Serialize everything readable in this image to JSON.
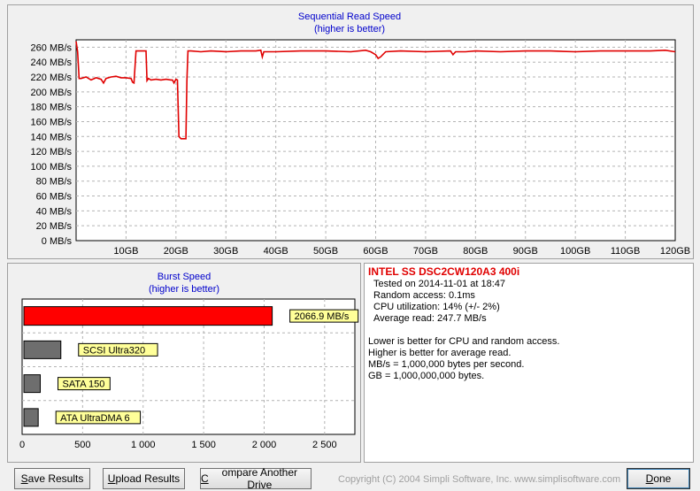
{
  "sequential": {
    "title": "Sequential Read Speed",
    "subtitle": "(higher is better)"
  },
  "burst": {
    "title": "Burst Speed",
    "subtitle": "(higher is better)"
  },
  "info": {
    "drive_name": "INTEL SS DSC2CW120A3 400i",
    "tested_on": "Tested on 2014-11-01 at 18:47",
    "random_access": "Random access: 0.1ms",
    "cpu_utilization": "CPU utilization: 14% (+/- 2%)",
    "average_read": "Average read: 247.7 MB/s",
    "note1": "Lower is better for CPU and random access.",
    "note2": "Higher is better for average read.",
    "note3": "MB/s = 1,000,000 bytes per second.",
    "note4": "GB = 1,000,000,000 bytes."
  },
  "buttons": {
    "save_prefix": "S",
    "save_rest": "ave Results",
    "upload_prefix": "U",
    "upload_rest": "pload Results",
    "compare_prefix": "C",
    "compare_rest": "ompare Another Drive",
    "done_prefix": "D",
    "done_rest": "one"
  },
  "copyright": "Copyright (C) 2004 Simpli Software, Inc. www.simplisoftware.com",
  "colors": {
    "read_line": "#e00000",
    "grid": "#b4b4b4",
    "primary_bar": "#ff0000",
    "reference_bar": "#6e6e6e",
    "label_bg": "#ffff99",
    "title_blue": "#0000cc",
    "drive_name_red": "#e00000"
  },
  "chart_data": [
    {
      "type": "line",
      "title": "Sequential Read Speed",
      "subtitle": "(higher is better)",
      "x_unit": "GB",
      "y_unit": "MB/s",
      "xlim": [
        0,
        120
      ],
      "ylim": [
        0,
        270
      ],
      "x_ticks": [
        "10GB",
        "20GB",
        "30GB",
        "40GB",
        "50GB",
        "60GB",
        "70GB",
        "80GB",
        "90GB",
        "100GB",
        "110GB",
        "120GB"
      ],
      "y_ticks": [
        "0 MB/s",
        "20 MB/s",
        "40 MB/s",
        "60 MB/s",
        "80 MB/s",
        "100 MB/s",
        "120 MB/s",
        "140 MB/s",
        "160 MB/s",
        "180 MB/s",
        "200 MB/s",
        "220 MB/s",
        "240 MB/s",
        "260 MB/s"
      ],
      "grid": true,
      "series": [
        {
          "x": [
            0,
            0.3,
            0.6,
            1,
            2,
            3,
            4,
            5,
            5.5,
            6,
            7,
            8,
            9,
            10,
            11,
            11.3,
            11.6,
            12,
            14,
            14.2,
            14.5,
            15,
            16,
            17,
            18,
            19,
            19.3,
            19.6,
            20,
            20.3,
            20.6,
            21,
            22,
            22.2,
            22.4,
            22.7,
            23,
            25,
            27,
            30,
            33,
            36,
            37,
            37.3,
            37.6,
            40,
            45,
            50,
            55,
            58,
            59,
            60,
            60.5,
            61,
            62,
            65,
            70,
            75,
            75.5,
            76,
            78,
            80,
            85,
            90,
            95,
            100,
            105,
            110,
            115,
            118,
            120
          ],
          "y": [
            268,
            254,
            218,
            218,
            220,
            216,
            219,
            217,
            212,
            218,
            220,
            221,
            219,
            219,
            218,
            213,
            212,
            255,
            255,
            215,
            218,
            216,
            217,
            216,
            217,
            216,
            216,
            212,
            217,
            216,
            140,
            137,
            137,
            215,
            255,
            255,
            255,
            254,
            255,
            254,
            255,
            255,
            256,
            247,
            254,
            254,
            255,
            255,
            254,
            256,
            254,
            250,
            245,
            247,
            254,
            255,
            254,
            255,
            250,
            254,
            254,
            255,
            254,
            255,
            255,
            254,
            255,
            255,
            255,
            256,
            254
          ]
        }
      ]
    },
    {
      "type": "bar",
      "title": "Burst Speed",
      "subtitle": "(higher is better)",
      "orientation": "horizontal",
      "xlim": [
        0,
        2750
      ],
      "x_ticks": [
        "0",
        "500",
        "1 000",
        "1 500",
        "2 000",
        "2 500"
      ],
      "grid": true,
      "categories": [
        "2066.9 MB/s",
        "SCSI Ultra320",
        "SATA 150",
        "ATA UltraDMA 6"
      ],
      "values": [
        2066.9,
        320,
        150,
        133
      ]
    }
  ]
}
